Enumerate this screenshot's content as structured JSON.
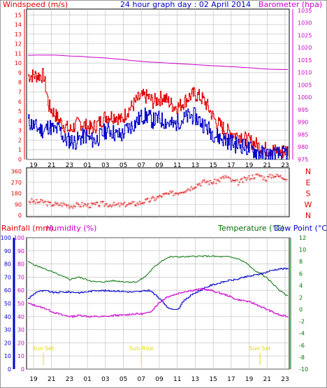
{
  "title": "24 hour graph day : 02 April 2014",
  "colors": {
    "wind": "#e00000",
    "gust": "#e00000",
    "windAvg": "#0000cc",
    "barometer": "#cc00cc",
    "direction": "#e00000",
    "rain": "#0000cc",
    "humidity": "#cc00cc",
    "temperature": "#007000",
    "dewpoint": "#0000cc",
    "sun": "#e6d800",
    "grid": "#bbbbbb"
  },
  "x_ticks": [
    "19",
    "21",
    "23",
    "01",
    "03",
    "05",
    "07",
    "09",
    "11",
    "13",
    "15",
    "17",
    "19",
    "21",
    "23"
  ],
  "chart_data": [
    {
      "type": "line",
      "title": "24 hour graph day : 02 April 2014",
      "left_axis_label": "Windspeed (m/s)",
      "right_axis_label": "Barometer (hpa)",
      "left_ticks": [
        0,
        1,
        2,
        3,
        4,
        5,
        6,
        7,
        8,
        9,
        10,
        11,
        12,
        13,
        14,
        15
      ],
      "right_ticks": [
        975,
        980,
        985,
        990,
        995,
        1000,
        1005,
        1010,
        1015,
        1020,
        1025,
        1030,
        1035
      ],
      "ylim_left": [
        0,
        15.6
      ],
      "ylim_right": [
        975,
        1035.5
      ],
      "grid": true,
      "series": [
        {
          "key": "gust",
          "values": [
            8.7,
            8.7,
            8.7,
            8.7,
            5.5,
            4.8,
            4.0,
            3.5,
            3.0,
            3.5,
            3.8,
            3.5,
            3.2,
            3.5,
            4.0,
            4.5,
            4.5,
            4.5,
            4.0,
            5.0,
            5.5,
            6.2,
            6.5,
            6.5,
            6.0,
            6.2,
            6.5,
            6.0,
            5.5,
            5.5,
            6.0,
            6.5,
            6.8,
            6.5,
            6.0,
            5.0,
            4.0,
            3.5,
            3.0,
            2.8,
            2.5,
            2.5,
            2.0,
            1.8,
            1.5,
            1.2,
            1.0,
            1.0,
            0.8,
            0.8,
            1.0
          ]
        },
        {
          "key": "wind",
          "values": [
            4.0,
            3.5,
            3.2,
            3.0,
            3.5,
            3.0,
            3.2,
            2.0,
            2.0,
            1.8,
            2.2,
            2.5,
            2.0,
            2.0,
            2.5,
            3.0,
            3.0,
            2.5,
            2.5,
            3.2,
            3.5,
            4.0,
            4.5,
            4.5,
            4.0,
            4.2,
            4.0,
            3.8,
            3.5,
            4.0,
            4.2,
            4.5,
            4.5,
            4.0,
            3.5,
            3.0,
            2.5,
            2.2,
            2.0,
            1.8,
            1.5,
            1.5,
            1.2,
            1.0,
            0.8,
            0.6,
            0.5,
            0.5,
            0.5,
            0.5,
            0.8
          ]
        },
        {
          "key": "barometer",
          "values": [
            1016.9,
            1017,
            1017,
            1017,
            1016.8,
            1016.6,
            1016.5,
            1016.2,
            1016,
            1015.8,
            1015.5,
            1015.2,
            1014.8,
            1014.5,
            1014.2,
            1014,
            1013.8,
            1013.6,
            1013.4,
            1013.2,
            1013,
            1012.8,
            1012.6,
            1012.4,
            1012.2,
            1012,
            1011.8,
            1011.5,
            1011.3,
            1011.2,
            1011.2
          ]
        }
      ]
    },
    {
      "type": "scatter",
      "left_ticks": [
        0,
        90,
        180,
        270,
        360
      ],
      "right_labels": [
        "N",
        "W",
        "S",
        "E",
        "N"
      ],
      "ylim": [
        0,
        360
      ],
      "series": [
        {
          "key": "direction",
          "values": [
            120,
            110,
            115,
            95,
            90,
            95,
            80,
            85,
            90,
            85,
            90,
            95,
            90,
            85,
            90,
            95,
            100,
            115,
            130,
            150,
            170,
            180,
            190,
            210,
            230,
            260,
            280,
            270,
            290,
            320,
            280,
            270,
            300,
            320,
            330,
            300,
            330,
            320,
            310
          ]
        }
      ]
    },
    {
      "type": "line",
      "legend": [
        "Rainfall (mm)",
        "Humidity (%)",
        "Temperature (°C)",
        "Dew Point (°C)"
      ],
      "rain_ticks": [
        0,
        10,
        20,
        30,
        40,
        50,
        60,
        70,
        80,
        90,
        100
      ],
      "humidity_ticks": [
        0,
        10,
        20,
        30,
        40,
        50,
        60,
        70,
        80,
        90,
        100
      ],
      "temp_ticks": [
        -10,
        -8,
        -6,
        -4,
        -2,
        0,
        2,
        4,
        6,
        8,
        10,
        12
      ],
      "ylim_left": [
        0,
        100
      ],
      "ylim_right": [
        -10,
        12
      ],
      "grid": true,
      "annotations": [
        {
          "label": "Sun Set",
          "x": 1.1
        },
        {
          "label": "Sun Rise",
          "x": 12.0
        },
        {
          "label": "Sun Set",
          "x": 25.2
        }
      ],
      "series": [
        {
          "key": "temperature",
          "values": [
            8,
            7.3,
            6.8,
            6.2,
            5.6,
            5.0,
            5.4,
            5.0,
            4.6,
            4.6,
            4.8,
            4.7,
            4.6,
            4.6,
            5.5,
            7.0,
            8.2,
            8.8,
            8.8,
            8.8,
            8.9,
            8.9,
            8.9,
            8.8,
            8.8,
            8.5,
            7.8,
            6.5,
            5.8,
            4.6,
            3.2,
            2.2
          ]
        },
        {
          "key": "dewpoint",
          "values": [
            1.8,
            3.0,
            3.1,
            2.8,
            2.9,
            2.9,
            2.8,
            3.0,
            3.2,
            3.1,
            3.1,
            3.0,
            2.9,
            3.0,
            3.2,
            2.0,
            0.5,
            -0.5,
            1.5,
            2.6,
            3.3,
            4.0,
            4.4,
            4.8,
            5.0,
            5.4,
            5.7,
            6.0,
            6.5,
            6.8,
            6.8
          ]
        },
        {
          "key": "humidity",
          "values": [
            50,
            48,
            46,
            43,
            41,
            40,
            41,
            40,
            40,
            40,
            41,
            41,
            42,
            42,
            43,
            50,
            55,
            57,
            59,
            60,
            61,
            60,
            58,
            56,
            53,
            52,
            50,
            47,
            44,
            41,
            40
          ]
        }
      ]
    }
  ]
}
